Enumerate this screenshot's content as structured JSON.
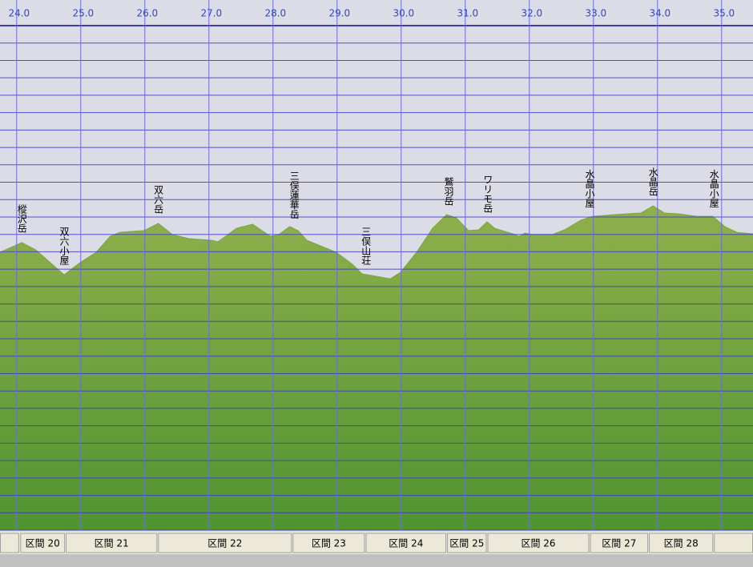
{
  "chart_data": {
    "type": "area",
    "xlim": [
      23.74,
      35.49
    ],
    "xticks": [
      {
        "value": 24,
        "label": "24.0"
      },
      {
        "value": 25,
        "label": "25.0"
      },
      {
        "value": 26,
        "label": "26.0"
      },
      {
        "value": 27,
        "label": "27.0"
      },
      {
        "value": 28,
        "label": "28.0"
      },
      {
        "value": 29,
        "label": "29.0"
      },
      {
        "value": 30,
        "label": "30.0"
      },
      {
        "value": 31,
        "label": "31.0"
      },
      {
        "value": 32,
        "label": "32.0"
      },
      {
        "value": 33,
        "label": "33.0"
      },
      {
        "value": 34,
        "label": "34.0"
      },
      {
        "value": 35,
        "label": "35.0"
      }
    ],
    "ylim": [
      1100,
      4000
    ],
    "yticks": [
      1100,
      1200,
      1300,
      1400,
      1500,
      1600,
      1700,
      1800,
      1900,
      2000,
      2100,
      2200,
      2300,
      2400,
      2500,
      2600,
      2700,
      2800,
      2900,
      3000,
      3100,
      3200,
      3300,
      3400,
      3500,
      3600,
      3700,
      3800,
      3900,
      4000
    ],
    "grid": true,
    "color": "#7aa640",
    "x": [
      23.74,
      24.08,
      24.3,
      24.74,
      24.99,
      25.24,
      25.46,
      25.61,
      25.99,
      26.21,
      26.43,
      26.68,
      27.05,
      27.14,
      27.43,
      27.68,
      27.96,
      28.09,
      28.26,
      28.39,
      28.53,
      28.74,
      28.99,
      29.24,
      29.39,
      29.61,
      29.83,
      29.99,
      30.24,
      30.49,
      30.71,
      30.86,
      31.05,
      31.21,
      31.34,
      31.46,
      31.74,
      31.84,
      31.93,
      32.05,
      32.36,
      32.55,
      32.8,
      32.99,
      33.36,
      33.74,
      33.93,
      34.11,
      34.34,
      34.61,
      34.86,
      35.05,
      35.24,
      35.49
    ],
    "values": [
      2697,
      2753,
      2711,
      2568,
      2638,
      2697,
      2789,
      2812,
      2822,
      2863,
      2799,
      2776,
      2766,
      2757,
      2835,
      2858,
      2789,
      2799,
      2845,
      2822,
      2766,
      2734,
      2697,
      2628,
      2573,
      2559,
      2545,
      2582,
      2697,
      2835,
      2914,
      2895,
      2822,
      2826,
      2872,
      2835,
      2803,
      2789,
      2808,
      2799,
      2799,
      2826,
      2881,
      2904,
      2914,
      2923,
      2964,
      2923,
      2918,
      2904,
      2904,
      2845,
      2812,
      2803
    ],
    "annotations": [
      {
        "text": "樅沢岳",
        "x": 24.08
      },
      {
        "text": "双六小屋",
        "x": 24.74
      },
      {
        "text": "双六岳",
        "x": 26.21
      },
      {
        "text": "三俣蓮華岳",
        "x": 28.33
      },
      {
        "text": "三俣山荘",
        "x": 29.45
      },
      {
        "text": "鷲羽岳",
        "x": 30.74
      },
      {
        "text": "ワリモ岳",
        "x": 31.35
      },
      {
        "text": "水晶小屋",
        "x": 32.94
      },
      {
        "text": "水晶岳",
        "x": 33.93
      },
      {
        "text": "水晶小屋",
        "x": 34.88
      }
    ],
    "sections": [
      {
        "label": "区間 20",
        "start": 24.05,
        "end": 24.76
      },
      {
        "label": "区間 21",
        "start": 24.76,
        "end": 26.2
      },
      {
        "label": "区間 22",
        "start": 26.2,
        "end": 28.3
      },
      {
        "label": "区間 23",
        "start": 28.3,
        "end": 29.44
      },
      {
        "label": "区間 24",
        "start": 29.44,
        "end": 30.71
      },
      {
        "label": "区間 25",
        "start": 30.71,
        "end": 31.34
      },
      {
        "label": "区間 26",
        "start": 31.34,
        "end": 32.94
      },
      {
        "label": "区間 27",
        "start": 32.94,
        "end": 33.86
      },
      {
        "label": "区間 28",
        "start": 33.86,
        "end": 34.875
      }
    ]
  }
}
